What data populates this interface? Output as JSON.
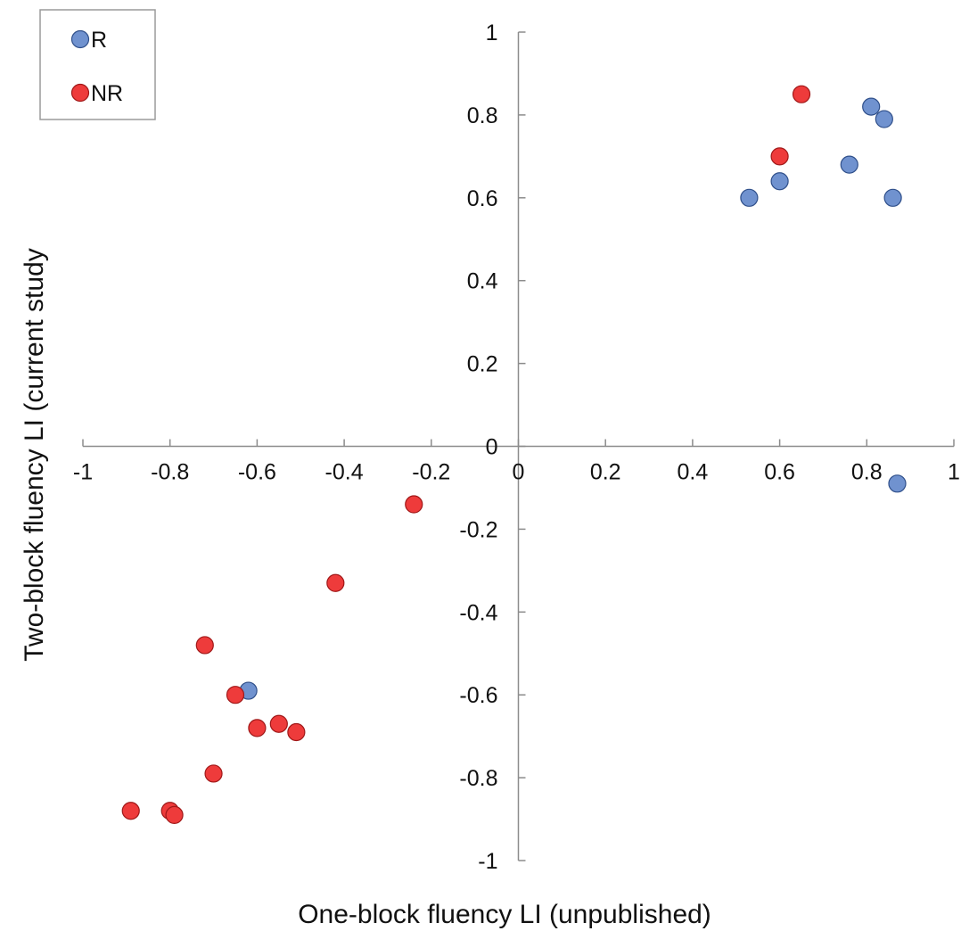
{
  "chart_data": {
    "type": "scatter",
    "xlabel": "One-block fluency LI (unpublished)",
    "ylabel": "Two-block fluency LI (current study",
    "xlim": [
      -1,
      1
    ],
    "ylim": [
      -1,
      1
    ],
    "x_ticks": [
      "-1",
      "-0.8",
      "-0.6",
      "-0.4",
      "-0.2",
      "0",
      "0.2",
      "0.4",
      "0.6",
      "0.8",
      "1"
    ],
    "y_ticks": [
      "-1",
      "-0.8",
      "-0.6",
      "-0.4",
      "-0.2",
      "0",
      "0.2",
      "0.4",
      "0.6",
      "0.8",
      "1"
    ],
    "grid": false,
    "legend_position": "top-left",
    "series": [
      {
        "name": "R",
        "color": "#7092cf",
        "points": [
          {
            "x": 0.53,
            "y": 0.6
          },
          {
            "x": 0.6,
            "y": 0.64
          },
          {
            "x": 0.76,
            "y": 0.68
          },
          {
            "x": 0.81,
            "y": 0.82
          },
          {
            "x": 0.84,
            "y": 0.79
          },
          {
            "x": 0.86,
            "y": 0.6
          },
          {
            "x": 0.87,
            "y": -0.09
          },
          {
            "x": -0.62,
            "y": -0.59
          }
        ]
      },
      {
        "name": "NR",
        "color": "#ee3b3b",
        "points": [
          {
            "x": 0.65,
            "y": 0.85
          },
          {
            "x": 0.6,
            "y": 0.7
          },
          {
            "x": -0.24,
            "y": -0.14
          },
          {
            "x": -0.42,
            "y": -0.33
          },
          {
            "x": -0.72,
            "y": -0.48
          },
          {
            "x": -0.65,
            "y": -0.6
          },
          {
            "x": -0.6,
            "y": -0.68
          },
          {
            "x": -0.55,
            "y": -0.67
          },
          {
            "x": -0.51,
            "y": -0.69
          },
          {
            "x": -0.7,
            "y": -0.79
          },
          {
            "x": -0.89,
            "y": -0.88
          },
          {
            "x": -0.8,
            "y": -0.88
          },
          {
            "x": -0.79,
            "y": -0.89
          }
        ]
      }
    ]
  }
}
